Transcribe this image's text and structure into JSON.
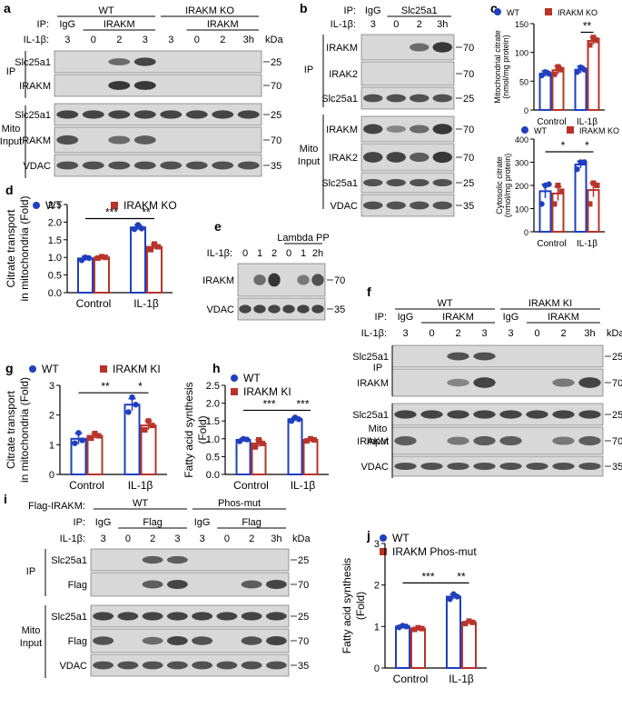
{
  "colors": {
    "wt": "#1f3fbf",
    "ko": "#b8342a",
    "blot": "#d8d8d8",
    "band": "#2a2a2a"
  },
  "blots": [
    {
      "id": "a",
      "letter": "a",
      "ip_prefix": "IP:",
      "il_label": "IL-1β:",
      "kda": "kDa",
      "groups": [
        "WT",
        "IRAKM KO"
      ],
      "ip_labels": [
        "IgG",
        "IRAKM",
        "IRAKM"
      ],
      "lanes": [
        "3",
        "0",
        "2",
        "3",
        "3",
        "0",
        "2",
        "3h"
      ],
      "sections": [
        "IP",
        "Mito Input"
      ],
      "rows": [
        {
          "label": "Slc25a1",
          "mw": "25"
        },
        {
          "label": "IRAKM",
          "mw": "70"
        },
        {
          "label": "Slc25a1",
          "mw": "25"
        },
        {
          "label": "IRAKM",
          "mw": "70"
        },
        {
          "label": "VDAC",
          "mw": "35"
        }
      ]
    },
    {
      "id": "b",
      "letter": "b",
      "ip_prefix": "IP:",
      "il_label": "IL-1β:",
      "ip_labels": [
        "IgG",
        "Slc25a1"
      ],
      "lanes": [
        "3",
        "0",
        "2",
        "3h"
      ],
      "sections": [
        "IP",
        "Mito Input"
      ],
      "rows": [
        {
          "label": "IRAKM",
          "mw": "70"
        },
        {
          "label": "IRAK2",
          "mw": "70"
        },
        {
          "label": "Slc25a1",
          "mw": "25"
        },
        {
          "label": "IRAKM",
          "mw": "70"
        },
        {
          "label": "IRAK2",
          "mw": "70"
        },
        {
          "label": "Slc25a1",
          "mw": "25"
        },
        {
          "label": "VDAC",
          "mw": "35"
        }
      ]
    },
    {
      "id": "e",
      "letter": "e",
      "il_label": "IL-1β:",
      "group": "Lambda PP",
      "lanes": [
        "0",
        "1",
        "2",
        "0",
        "1",
        "2h"
      ],
      "rows": [
        {
          "label": "IRAKM",
          "mw": "70"
        },
        {
          "label": "VDAC",
          "mw": "35"
        }
      ]
    },
    {
      "id": "f",
      "letter": "f",
      "ip_prefix": "IP:",
      "il_label": "IL-1β:",
      "kda": "kDa",
      "groups": [
        "WT",
        "IRAKM KI"
      ],
      "ip_labels": [
        "IgG",
        "IRAKM",
        "IgG",
        "IRAKM"
      ],
      "lanes": [
        "3",
        "0",
        "2",
        "3",
        "3",
        "0",
        "2",
        "3h"
      ],
      "sections": [
        "IP",
        "Mito Input"
      ],
      "rows": [
        {
          "label": "Slc25a1",
          "mw": "25"
        },
        {
          "label": "IRAKM",
          "mw": "70"
        },
        {
          "label": "Slc25a1",
          "mw": "25"
        },
        {
          "label": "IRAKM",
          "mw": "70"
        },
        {
          "label": "VDAC",
          "mw": "35"
        }
      ]
    },
    {
      "id": "i",
      "letter": "i",
      "flag_label": "Flag-IRAKM:",
      "ip_prefix": "IP:",
      "il_label": "IL-1β:",
      "kda": "kDa",
      "groups": [
        "WT",
        "Phos-mut"
      ],
      "ip_labels": [
        "IgG",
        "Flag",
        "IgG",
        "Flag"
      ],
      "lanes": [
        "3",
        "0",
        "2",
        "3",
        "3",
        "0",
        "2",
        "3h"
      ],
      "sections": [
        "IP",
        "Mito Input"
      ],
      "rows": [
        {
          "label": "Slc25a1",
          "mw": "25"
        },
        {
          "label": "Flag",
          "mw": "70"
        },
        {
          "label": "Slc25a1",
          "mw": "25"
        },
        {
          "label": "Flag",
          "mw": "70"
        },
        {
          "label": "VDAC",
          "mw": "35"
        }
      ]
    }
  ],
  "chart_data": [
    {
      "id": "c1",
      "letter": "c",
      "type": "bar",
      "ylabel": "Mitochondrial citrate (nmol/mg protein)",
      "ylim": [
        0,
        150
      ],
      "ticks": [
        0,
        50,
        100,
        150
      ],
      "categories": [
        "Control",
        "IL-1β"
      ],
      "legend": [
        "WT",
        "IRAKM KO"
      ],
      "series": [
        {
          "name": "WT",
          "values": [
            63,
            70
          ],
          "err": [
            5,
            6
          ],
          "points": [
            [
              60,
              66,
              63
            ],
            [
              66,
              74,
              70
            ]
          ]
        },
        {
          "name": "IRAKM KO",
          "values": [
            69,
            120
          ],
          "err": [
            7,
            6
          ],
          "points": [
            [
              62,
              75,
              70
            ],
            [
              113,
              126,
              121
            ]
          ]
        }
      ],
      "sig": [
        {
          "text": "**"
        }
      ]
    },
    {
      "id": "c2",
      "type": "bar",
      "ylabel": "Cytosolic citrate (nmol/mg protein)",
      "ylim": [
        0,
        400
      ],
      "ticks": [
        0,
        100,
        200,
        300,
        400
      ],
      "categories": [
        "Control",
        "IL-1β"
      ],
      "legend": [
        "WT",
        "IRAKM KO"
      ],
      "series": [
        {
          "name": "WT",
          "values": [
            175,
            290
          ],
          "err": [
            30,
            15
          ],
          "points": [
            [
              120,
              200,
              205
            ],
            [
              270,
              300,
              300
            ]
          ]
        },
        {
          "name": "IRAKM KO",
          "values": [
            165,
            180
          ],
          "err": [
            30,
            30
          ],
          "points": [
            [
              120,
              200,
              175
            ],
            [
              120,
              210,
              200
            ]
          ]
        }
      ],
      "sig": [
        {
          "text": "*"
        },
        {
          "text": "*"
        }
      ]
    },
    {
      "id": "d",
      "letter": "d",
      "type": "bar",
      "ylabel": "Citrate transport in mitochondria (Fold)",
      "ylim": [
        0,
        2.5
      ],
      "ticks": [
        0.0,
        0.5,
        1.0,
        1.5,
        2.0,
        2.5
      ],
      "categories": [
        "Control",
        "IL-1β"
      ],
      "legend": [
        "WT",
        "IRAKM KO"
      ],
      "series": [
        {
          "name": "WT",
          "values": [
            0.97,
            1.85
          ],
          "err": [
            0.06,
            0.07
          ],
          "points": [
            [
              0.92,
              1.0,
              0.98
            ],
            [
              1.8,
              1.92,
              1.82
            ]
          ]
        },
        {
          "name": "IRAKM KO",
          "values": [
            1.0,
            1.3
          ],
          "err": [
            0.03,
            0.07
          ],
          "points": [
            [
              0.98,
              1.02,
              1.0
            ],
            [
              1.22,
              1.38,
              1.3
            ]
          ]
        }
      ],
      "sig": [
        {
          "text": "***"
        },
        {
          "text": "**"
        }
      ]
    },
    {
      "id": "g",
      "letter": "g",
      "type": "bar",
      "ylabel": "Citrate transport in mitochondria (Fold)",
      "ylim": [
        0,
        3
      ],
      "ticks": [
        0,
        1,
        2,
        3
      ],
      "categories": [
        "Control",
        "IL-1β"
      ],
      "legend": [
        "WT",
        "IRAKM KI"
      ],
      "series": [
        {
          "name": "WT",
          "values": [
            1.2,
            2.35
          ],
          "err": [
            0.18,
            0.2
          ],
          "points": [
            [
              1.05,
              1.4,
              1.15
            ],
            [
              2.1,
              2.6,
              2.35
            ]
          ]
        },
        {
          "name": "IRAKM KI",
          "values": [
            1.3,
            1.65
          ],
          "err": [
            0.08,
            0.15
          ],
          "points": [
            [
              1.22,
              1.38,
              1.3
            ],
            [
              1.5,
              1.8,
              1.65
            ]
          ]
        }
      ],
      "sig": [
        {
          "text": "**"
        },
        {
          "text": "*"
        }
      ]
    },
    {
      "id": "h",
      "letter": "h",
      "type": "bar",
      "ylabel": "Fatty acid synthesis (Fold)",
      "ylim": [
        0,
        2.5
      ],
      "ticks": [
        0.0,
        0.5,
        1.0,
        1.5,
        2.0,
        2.5
      ],
      "categories": [
        "Control",
        "IL-1β"
      ],
      "legend": [
        "WT",
        "IRAKM KI"
      ],
      "series": [
        {
          "name": "WT",
          "values": [
            0.97,
            1.55
          ],
          "err": [
            0.04,
            0.05
          ],
          "points": [
            [
              0.93,
              1.0,
              0.98
            ],
            [
              1.5,
              1.6,
              1.55
            ]
          ]
        },
        {
          "name": "IRAKM KI",
          "values": [
            0.87,
            0.97
          ],
          "err": [
            0.1,
            0.03
          ],
          "points": [
            [
              0.77,
              0.97,
              0.87
            ],
            [
              0.94,
              1.0,
              0.97
            ]
          ]
        }
      ],
      "sig": [
        {
          "text": "***"
        },
        {
          "text": "***"
        }
      ]
    },
    {
      "id": "j",
      "letter": "j",
      "type": "bar",
      "ylabel": "Fatty acid synthesis (Fold)",
      "ylim": [
        0,
        3
      ],
      "ticks": [
        0,
        1,
        2,
        3
      ],
      "categories": [
        "Control",
        "IL-1β"
      ],
      "legend": [
        "WT",
        "IRAKM Phos-mut"
      ],
      "series": [
        {
          "name": "WT",
          "values": [
            1.0,
            1.72
          ],
          "err": [
            0.02,
            0.06
          ],
          "points": [
            [
              0.98,
              1.02,
              1.0
            ],
            [
              1.66,
              1.78,
              1.72
            ]
          ]
        },
        {
          "name": "IRAKM Phos-mut",
          "values": [
            0.95,
            1.1
          ],
          "err": [
            0.02,
            0.03
          ],
          "points": [
            [
              0.93,
              0.97,
              0.95
            ],
            [
              1.07,
              1.13,
              1.1
            ]
          ]
        }
      ],
      "sig": [
        {
          "text": "***"
        },
        {
          "text": "**"
        }
      ]
    }
  ]
}
